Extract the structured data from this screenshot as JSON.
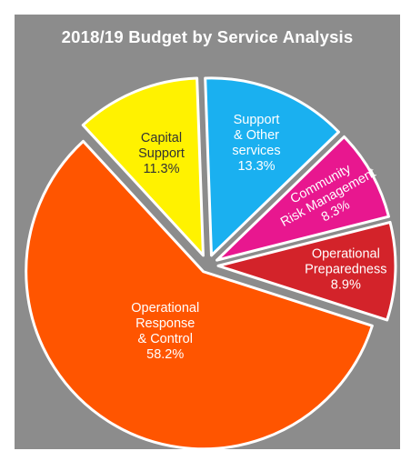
{
  "chart_data": {
    "type": "pie",
    "title": "2018/19 Budget by Service Analysis",
    "slices": [
      {
        "label": [
          "Support",
          "& Other",
          "services"
        ],
        "value": 13.3,
        "value_text": "13.3%",
        "color": "#1ab0f0",
        "text_color": "#ffffff"
      },
      {
        "label": [
          "Community",
          "Risk Management"
        ],
        "value": 8.3,
        "value_text": "8.3%",
        "color": "#e8178f",
        "text_color": "#ffffff"
      },
      {
        "label": [
          "Operational",
          "Preparedness"
        ],
        "value": 8.9,
        "value_text": "8.9%",
        "color": "#d3232a",
        "text_color": "#ffffff"
      },
      {
        "label": [
          "Operational",
          "Response",
          "& Control"
        ],
        "value": 58.2,
        "value_text": "58.2%",
        "color": "#ff5500",
        "text_color": "#ffffff"
      },
      {
        "label": [
          "Capital",
          "Support"
        ],
        "value": 11.3,
        "value_text": "11.3%",
        "color": "#fff200",
        "text_color": "#333333"
      }
    ],
    "legend": "none"
  }
}
